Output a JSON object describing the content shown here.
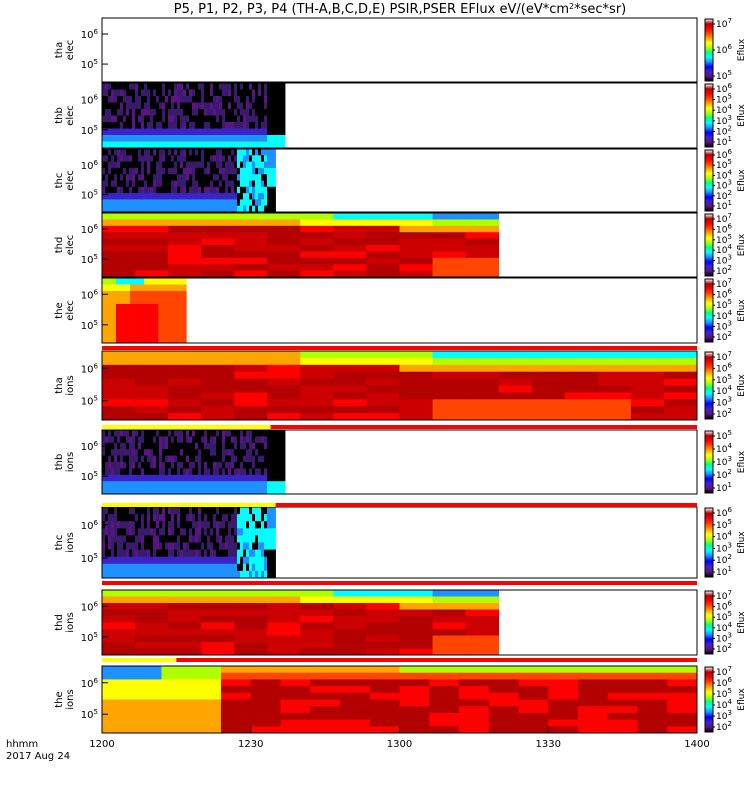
{
  "title": "P5, P1, P2, P3, P4 (TH-A,B,C,D,E) PSIR,PSER EFlux eV/(eV*cm2*sec*sr)",
  "time_axis": {
    "label_line1": "hhmm",
    "label_line2": "2017 Aug 24",
    "ticks": [
      "1200",
      "1230",
      "1300",
      "1330",
      "1400"
    ]
  },
  "colorbar_label": "Eflux",
  "colors": {
    "palette": [
      "#000000",
      "#5a1585",
      "#3c23c8",
      "#0000ff",
      "#1e90ff",
      "#00ffff",
      "#00ff7f",
      "#b0ff00",
      "#ffff00",
      "#ffa500",
      "#ff4500",
      "#ff0000",
      "#b30000"
    ],
    "flag_red": "#ff0000",
    "flag_yellow": "#ffff00"
  },
  "chart_data": {
    "type": "heatmap",
    "x_unit": "hhmm",
    "x_range": [
      "1200",
      "1400"
    ],
    "y_scale": "log",
    "y_tick_labels": [
      "10^5",
      "10^6"
    ],
    "panels": [
      {
        "name": "tha elec",
        "line1": "tha",
        "line2": "elec",
        "data_end": "1200",
        "pattern": "empty",
        "colorbar_ticks": [
          "10^5",
          "10^6",
          "10^7"
        ],
        "colorbar_label": "Eflux"
      },
      {
        "name": "thb elec",
        "line1": "thb",
        "line2": "elec",
        "data_end": "1237",
        "pattern": "low",
        "colorbar_ticks": [
          "10^1",
          "10^2",
          "10^3",
          "10^4",
          "10^5",
          "10^6"
        ],
        "colorbar_label": "Eflux"
      },
      {
        "name": "thc elec",
        "line1": "thc",
        "line2": "elec",
        "data_end": "1235",
        "pattern": "lowburst",
        "colorbar_ticks": [
          "10^1",
          "10^2",
          "10^3",
          "10^4",
          "10^5",
          "10^6"
        ],
        "colorbar_label": "Eflux"
      },
      {
        "name": "thd elec",
        "line1": "thd",
        "line2": "elec",
        "data_end": "1320",
        "pattern": "highfull",
        "colorbar_ticks": [
          "10^2",
          "10^3",
          "10^4",
          "10^5",
          "10^6",
          "10^7"
        ],
        "colorbar_label": "Eflux"
      },
      {
        "name": "the elec",
        "line1": "the",
        "line2": "elec",
        "data_end": "1217",
        "pattern": "highsmall",
        "colorbar_ticks": [
          "10^2",
          "10^3",
          "10^4",
          "10^5",
          "10^6",
          "10^7"
        ],
        "colorbar_label": "Eflux"
      },
      {
        "name": "tha ions",
        "line1": "tha",
        "line2": "ions",
        "data_end": "1400",
        "pattern": "ionshigh",
        "flag": [
          {
            "color": "red",
            "start": "1200",
            "end": "1400"
          }
        ],
        "colorbar_ticks": [
          "10^2",
          "10^3",
          "10^4",
          "10^5",
          "10^6",
          "10^7"
        ],
        "colorbar_label": "Eflux"
      },
      {
        "name": "thb ions",
        "line1": "thb",
        "line2": "ions",
        "data_end": "1237",
        "pattern": "low",
        "flag": [
          {
            "color": "yellow",
            "start": "1200",
            "end": "1234"
          },
          {
            "color": "red",
            "start": "1234",
            "end": "1400"
          }
        ],
        "colorbar_ticks": [
          "10^1",
          "10^2",
          "10^3",
          "10^4",
          "10^5"
        ],
        "colorbar_label": "Eflux"
      },
      {
        "name": "thc ions",
        "line1": "thc",
        "line2": "ions",
        "data_end": "1235",
        "pattern": "lowburst",
        "flag": [
          {
            "color": "yellow",
            "start": "1200",
            "end": "1235"
          },
          {
            "color": "red",
            "start": "1235",
            "end": "1400"
          }
        ],
        "colorbar_ticks": [
          "10^1",
          "10^2",
          "10^3",
          "10^4",
          "10^5",
          "10^6"
        ],
        "colorbar_label": "Eflux"
      },
      {
        "name": "thd ions",
        "line1": "thd",
        "line2": "ions",
        "data_end": "1320",
        "pattern": "ionsfull",
        "flag": [
          {
            "color": "red",
            "start": "1200",
            "end": "1400"
          }
        ],
        "colorbar_ticks": [
          "10^2",
          "10^3",
          "10^4",
          "10^5",
          "10^6",
          "10^7"
        ],
        "colorbar_label": "Eflux"
      },
      {
        "name": "the ions",
        "line1": "the",
        "line2": "ions",
        "data_end": "1400",
        "pattern": "theions",
        "flag": [
          {
            "color": "yellow",
            "start": "1200",
            "end": "1215"
          },
          {
            "color": "red",
            "start": "1215",
            "end": "1400"
          }
        ],
        "colorbar_ticks": [
          "10^2",
          "10^3",
          "10^4",
          "10^5",
          "10^6",
          "10^7"
        ],
        "colorbar_label": "Eflux"
      }
    ]
  }
}
